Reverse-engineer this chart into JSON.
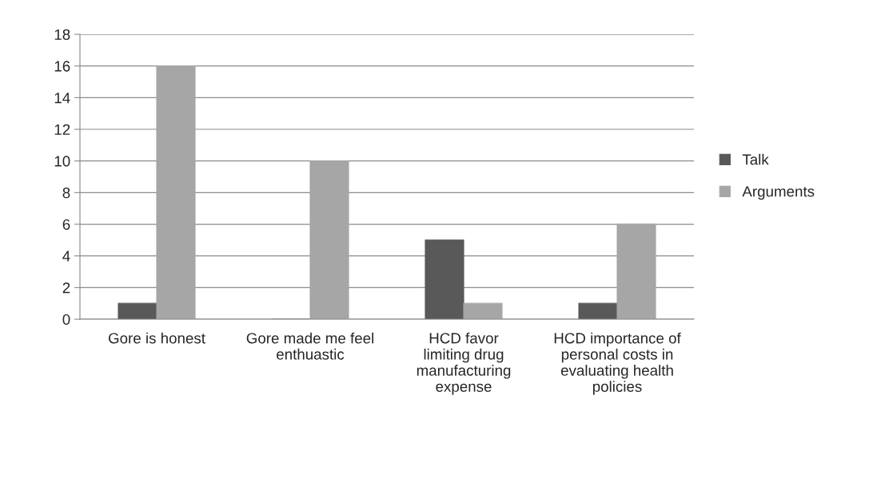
{
  "chart_data": {
    "type": "bar",
    "categories": [
      "Gore is honest",
      "Gore made me feel enthuastic",
      "HCD favor limiting drug manufacturing expense",
      "HCD importance of personal costs in evaluating health policies"
    ],
    "series": [
      {
        "name": "Talk",
        "color": "#595959",
        "values": [
          1,
          0,
          5,
          1
        ]
      },
      {
        "name": "Arguments",
        "color": "#a6a6a6",
        "values": [
          16,
          10,
          1,
          6
        ]
      }
    ],
    "ylim": [
      0,
      18
    ],
    "yticks": [
      0,
      2,
      4,
      6,
      8,
      10,
      12,
      14,
      16,
      18
    ],
    "grid": "y",
    "legend": "right"
  }
}
